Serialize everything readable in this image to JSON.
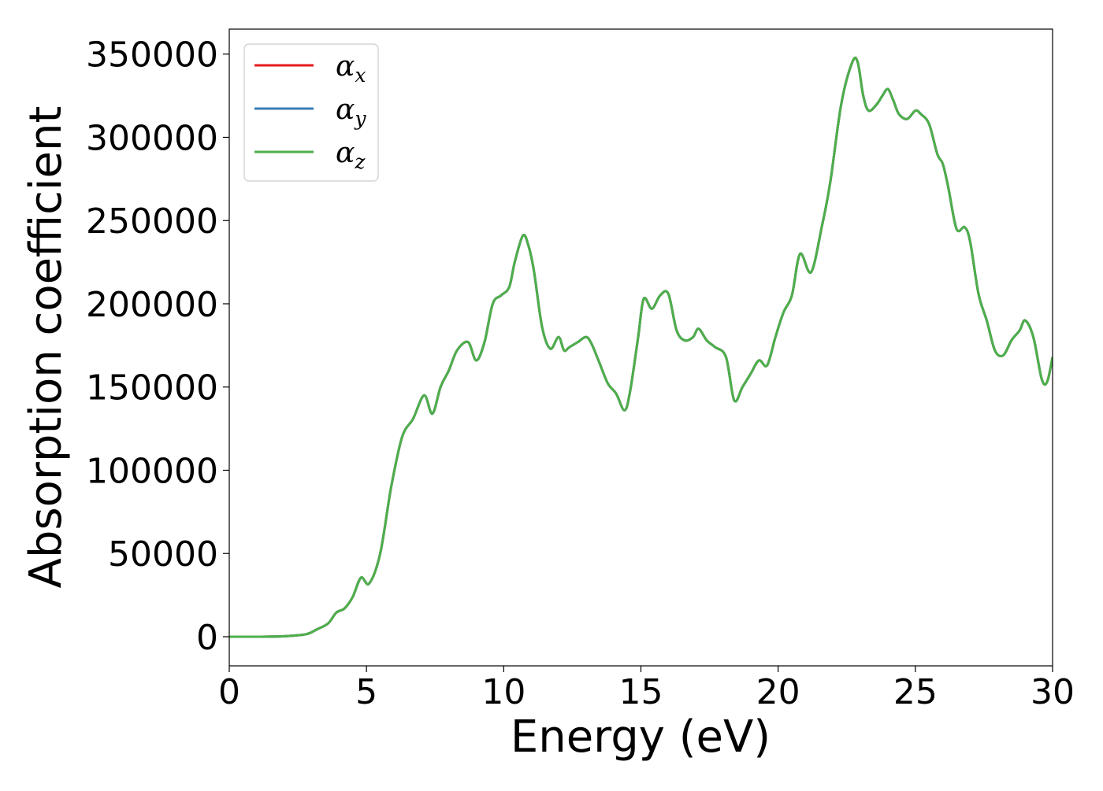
{
  "chart_data": {
    "type": "line",
    "xlabel": "Energy (eV)",
    "ylabel": "Absorption coefficient",
    "xlim": [
      0,
      30
    ],
    "ylim": [
      -17500,
      365000
    ],
    "xticks": [
      0,
      5,
      10,
      15,
      20,
      25,
      30
    ],
    "xtick_labels": [
      "0",
      "5",
      "10",
      "15",
      "20",
      "25",
      "30"
    ],
    "yticks": [
      0,
      50000,
      100000,
      150000,
      200000,
      250000,
      300000,
      350000
    ],
    "ytick_labels": [
      "0",
      "50000",
      "100000",
      "150000",
      "200000",
      "250000",
      "300000",
      "350000"
    ],
    "grid": false,
    "legend_position": "top-left",
    "series": [
      {
        "name": "αx",
        "symbol": "α",
        "subscript": "x",
        "color": "#e41a1c"
      },
      {
        "name": "αy",
        "symbol": "α",
        "subscript": "y",
        "color": "#377eb8"
      },
      {
        "name": "αz",
        "symbol": "α",
        "subscript": "z",
        "color": "#4daf4a"
      }
    ],
    "x": [
      0,
      1,
      2,
      2.8,
      3.2,
      3.6,
      3.9,
      4.2,
      4.5,
      4.8,
      5.1,
      5.5,
      5.9,
      6.3,
      6.7,
      7.1,
      7.4,
      7.7,
      8.0,
      8.3,
      8.7,
      9.0,
      9.3,
      9.6,
      9.9,
      10.2,
      10.4,
      10.7,
      10.9,
      11.1,
      11.4,
      11.7,
      12.0,
      12.2,
      12.4,
      12.7,
      13.0,
      13.2,
      13.5,
      13.8,
      14.1,
      14.4,
      14.6,
      14.9,
      15.1,
      15.4,
      15.7,
      16.0,
      16.3,
      16.6,
      16.9,
      17.1,
      17.4,
      17.7,
      18.1,
      18.4,
      18.7,
      19.0,
      19.3,
      19.6,
      19.9,
      20.2,
      20.5,
      20.8,
      21.2,
      21.6,
      21.9,
      22.3,
      22.7,
      22.9,
      23.1,
      23.3,
      23.6,
      23.8,
      24.0,
      24.2,
      24.4,
      24.7,
      25.0,
      25.2,
      25.5,
      25.8,
      26.0,
      26.2,
      26.5,
      26.8,
      27.0,
      27.3,
      27.6,
      27.9,
      28.2,
      28.5,
      28.8,
      29.0,
      29.3,
      29.6,
      29.8,
      30.0
    ],
    "y": [
      0,
      0,
      300,
      1500,
      4500,
      8000,
      14500,
      17000,
      24000,
      35500,
      32000,
      50000,
      90000,
      120000,
      131000,
      145000,
      134000,
      150000,
      160000,
      172000,
      177000,
      166000,
      177000,
      200000,
      205000,
      210000,
      225000,
      241000,
      235000,
      220000,
      186000,
      173000,
      180000,
      172000,
      174000,
      177000,
      180000,
      176000,
      164000,
      152000,
      146000,
      136000,
      147000,
      180000,
      203000,
      197000,
      205000,
      206000,
      184000,
      178000,
      180000,
      185000,
      178000,
      174000,
      168000,
      142000,
      150000,
      158000,
      166000,
      163000,
      180000,
      195000,
      205000,
      230000,
      219000,
      247000,
      273000,
      320000,
      345000,
      345000,
      325000,
      316000,
      320000,
      325000,
      329000,
      322000,
      314000,
      311000,
      316000,
      314000,
      308000,
      290000,
      284000,
      270000,
      245000,
      246000,
      237000,
      206000,
      190000,
      172000,
      169000,
      178000,
      184000,
      190000,
      180000,
      155000,
      153000,
      168000
    ]
  }
}
